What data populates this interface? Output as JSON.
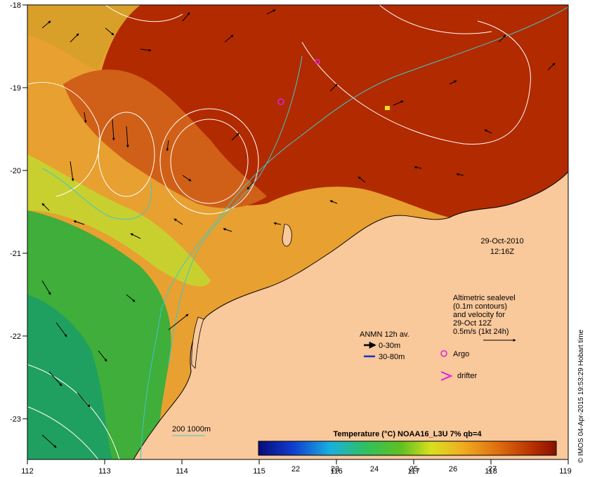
{
  "map": {
    "lon_ticks": [
      "112",
      "113",
      "114",
      "115",
      "116",
      "117",
      "118",
      "119"
    ],
    "lat_ticks": [
      "-18",
      "-19",
      "-20",
      "-21",
      "-22",
      "-23"
    ],
    "date": "29-Oct-2010",
    "time": "12:16Z",
    "legend_title": "Temperature (°C) NOAA16_L3U 7% qb=4",
    "colorbar_ticks": [
      "22",
      "23",
      "24",
      "25",
      "26",
      "27"
    ],
    "altimetric_lines": [
      "Altimetric sealevel",
      "(0.1m contours)",
      "and velocity for",
      "29-Oct 12Z",
      "0.5m/s (1kt 24h)"
    ],
    "anmn_title": "ANMN 12h av.",
    "anmn_0_30": "0-30m",
    "anmn_30_80": "30-80m",
    "argo_label": "Argo",
    "drifter_label": "drifter",
    "bathy_label": "200  1000m",
    "credit": "© IMOS 04-Apr-2015 19:53:29 Hobart time",
    "colors": {
      "land": "#f9c89b",
      "warm": "#b22a00",
      "mid": "#e8a030",
      "cool": "#4caf3a",
      "bathy": "#3ec8c8",
      "argo": "#e020e0",
      "arrow_shallow": "#000000",
      "arrow_deep": "#1030d0"
    }
  }
}
